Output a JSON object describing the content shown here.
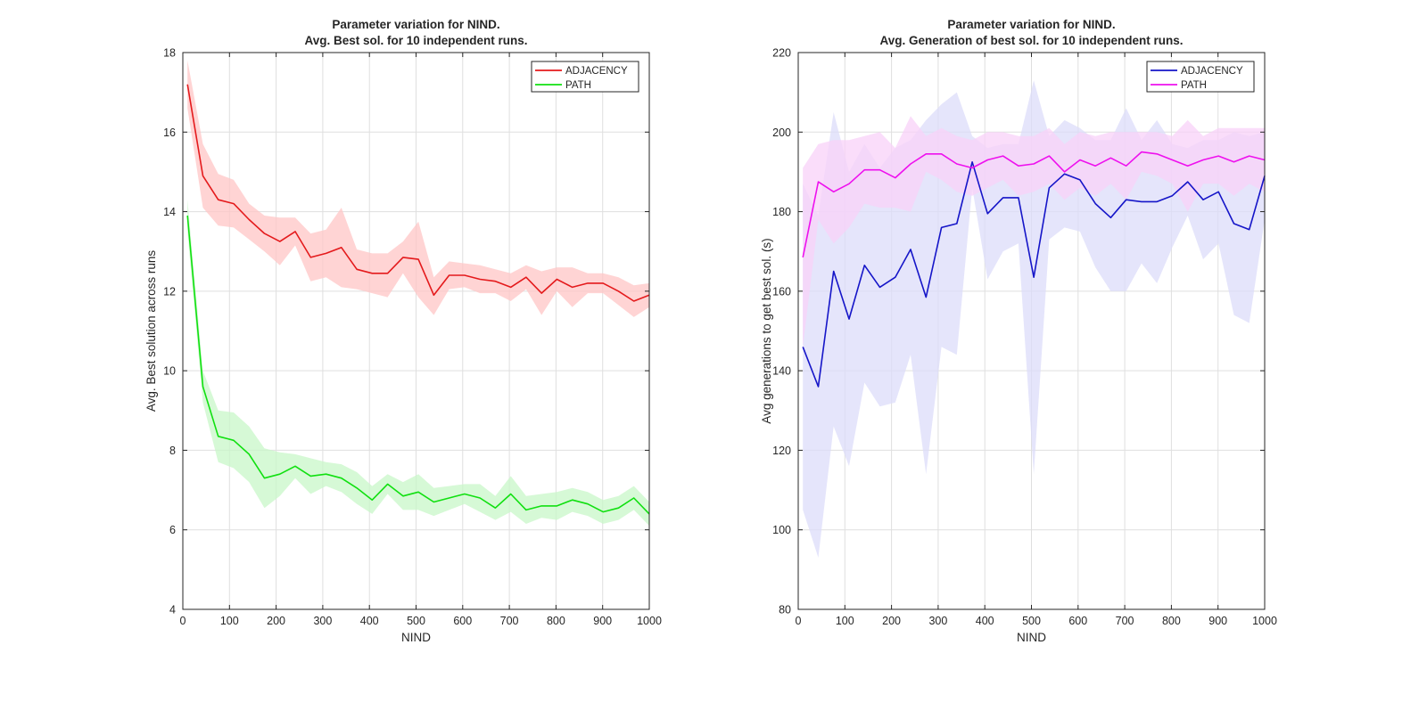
{
  "figure": "nind-parameter-variation",
  "chart_data": [
    {
      "type": "line",
      "title_line1": "Parameter variation for NIND.",
      "title_line2": "Avg. Best sol. for 10 independent runs.",
      "xlabel": "NIND",
      "ylabel": "Avg. Best solution across runs",
      "xlim": [
        0,
        1000
      ],
      "ylim": [
        4,
        18
      ],
      "xticks": [
        0,
        100,
        200,
        300,
        400,
        500,
        600,
        700,
        800,
        900,
        1000
      ],
      "yticks": [
        4,
        6,
        8,
        10,
        12,
        14,
        16,
        18
      ],
      "grid": true,
      "legend_position": "top-right",
      "x": [
        10,
        43,
        76,
        109,
        142,
        175,
        208,
        241,
        274,
        307,
        340,
        373,
        406,
        439,
        472,
        505,
        538,
        571,
        604,
        637,
        670,
        703,
        736,
        769,
        802,
        835,
        868,
        901,
        934,
        967,
        1000
      ],
      "series": [
        {
          "name": "ADJACENCY",
          "color": "#e41a1c",
          "band_color": "#ffc6c6",
          "values": [
            17.2,
            14.9,
            14.3,
            14.2,
            13.8,
            13.45,
            13.25,
            13.5,
            12.85,
            12.95,
            13.1,
            12.55,
            12.45,
            12.45,
            12.85,
            12.8,
            11.9,
            12.4,
            12.4,
            12.3,
            12.25,
            12.1,
            12.35,
            11.95,
            12.3,
            12.1,
            12.2,
            12.2,
            12.0,
            11.75,
            11.9
          ],
          "upper": [
            17.8,
            15.7,
            14.95,
            14.8,
            14.2,
            13.9,
            13.85,
            13.85,
            13.45,
            13.55,
            14.1,
            13.05,
            12.95,
            12.95,
            13.25,
            13.75,
            12.35,
            12.75,
            12.7,
            12.65,
            12.55,
            12.45,
            12.65,
            12.5,
            12.6,
            12.6,
            12.45,
            12.45,
            12.35,
            12.15,
            12.2
          ],
          "lower": [
            16.6,
            14.1,
            13.65,
            13.6,
            13.3,
            13.0,
            12.65,
            13.15,
            12.25,
            12.35,
            12.1,
            12.05,
            11.95,
            11.85,
            12.45,
            11.85,
            11.4,
            12.05,
            12.1,
            11.95,
            11.95,
            11.75,
            12.05,
            11.4,
            12.0,
            11.6,
            11.95,
            11.95,
            11.65,
            11.35,
            11.6
          ]
        },
        {
          "name": "PATH",
          "color": "#10e010",
          "band_color": "#c8f7c8",
          "values": [
            13.9,
            9.6,
            8.35,
            8.25,
            7.9,
            7.3,
            7.4,
            7.6,
            7.35,
            7.4,
            7.3,
            7.05,
            6.75,
            7.15,
            6.85,
            6.95,
            6.7,
            6.8,
            6.9,
            6.8,
            6.55,
            6.9,
            6.5,
            6.6,
            6.6,
            6.75,
            6.65,
            6.45,
            6.55,
            6.8,
            6.4
          ],
          "upper": [
            14.3,
            10.0,
            9.0,
            8.95,
            8.6,
            8.05,
            7.95,
            7.9,
            7.8,
            7.7,
            7.65,
            7.45,
            7.1,
            7.4,
            7.2,
            7.4,
            7.05,
            7.1,
            7.15,
            7.15,
            6.85,
            7.35,
            6.85,
            6.9,
            6.95,
            7.05,
            6.95,
            6.75,
            6.85,
            7.1,
            6.7
          ],
          "lower": [
            13.5,
            9.2,
            7.7,
            7.55,
            7.2,
            6.55,
            6.85,
            7.3,
            6.9,
            7.1,
            6.95,
            6.65,
            6.4,
            6.9,
            6.5,
            6.5,
            6.35,
            6.5,
            6.65,
            6.45,
            6.25,
            6.45,
            6.15,
            6.3,
            6.25,
            6.45,
            6.35,
            6.15,
            6.25,
            6.5,
            6.1
          ]
        }
      ]
    },
    {
      "type": "line",
      "title_line1": "Parameter variation for NIND.",
      "title_line2": "Avg. Generation of best sol. for 10 independent runs.",
      "xlabel": "NIND",
      "ylabel": "Avg generations to get best sol. (s)",
      "xlim": [
        0,
        1000
      ],
      "ylim": [
        80,
        220
      ],
      "xticks": [
        0,
        100,
        200,
        300,
        400,
        500,
        600,
        700,
        800,
        900,
        1000
      ],
      "yticks": [
        80,
        100,
        120,
        140,
        160,
        180,
        200,
        220
      ],
      "grid": true,
      "legend_position": "top-right",
      "x": [
        10,
        43,
        76,
        109,
        142,
        175,
        208,
        241,
        274,
        307,
        340,
        373,
        406,
        439,
        472,
        505,
        538,
        571,
        604,
        637,
        670,
        703,
        736,
        769,
        802,
        835,
        868,
        901,
        934,
        967,
        1000
      ],
      "series": [
        {
          "name": "ADJACENCY",
          "color": "#1515c8",
          "band_color": "#dcdcfa",
          "values": [
            146,
            136,
            165,
            153,
            166.5,
            161,
            163.5,
            170.5,
            158.5,
            176,
            177,
            192.5,
            179.5,
            183.5,
            183.5,
            163.5,
            186,
            189.5,
            188,
            182,
            178.5,
            183,
            182.5,
            182.5,
            184,
            187.5,
            183,
            185,
            177,
            175.5,
            189
          ],
          "upper": [
            187,
            179,
            205,
            190,
            197,
            191,
            196,
            198,
            203,
            207,
            210,
            199,
            196,
            197,
            197,
            213,
            199,
            203,
            201,
            198,
            198,
            206,
            198,
            203,
            197,
            196,
            198,
            198,
            200,
            199,
            200
          ],
          "lower": [
            105,
            93,
            126,
            116,
            137,
            131,
            132,
            144,
            114,
            146,
            144,
            186,
            163,
            170,
            172,
            114,
            173,
            176,
            175,
            166,
            160,
            160,
            167,
            162,
            171,
            179,
            168,
            172,
            154,
            152,
            178
          ]
        },
        {
          "name": "PATH",
          "color": "#ee10ee",
          "band_color": "#f8d2f8",
          "values": [
            168.5,
            187.5,
            185,
            187,
            190.5,
            190.5,
            188.5,
            192,
            194.5,
            194.5,
            192,
            191,
            193,
            194,
            191.5,
            192,
            194,
            190,
            193,
            191.5,
            193.5,
            191.5,
            195,
            194.5,
            193,
            191.5,
            193,
            194,
            192.5,
            194,
            193
          ],
          "upper": [
            191,
            197,
            198,
            198,
            199,
            200,
            196,
            204,
            199,
            201,
            199,
            198,
            200,
            200,
            199,
            199,
            201,
            197,
            200,
            199,
            200,
            200,
            200,
            200,
            199,
            203,
            199,
            201,
            201,
            201,
            201
          ],
          "lower": [
            146,
            178,
            172,
            176,
            182,
            181,
            181,
            180,
            190,
            188,
            185,
            184,
            186,
            188,
            184,
            185,
            187,
            183,
            186,
            184,
            187,
            183,
            190,
            189,
            187,
            180,
            187,
            187,
            184,
            187,
            185
          ]
        }
      ]
    }
  ]
}
